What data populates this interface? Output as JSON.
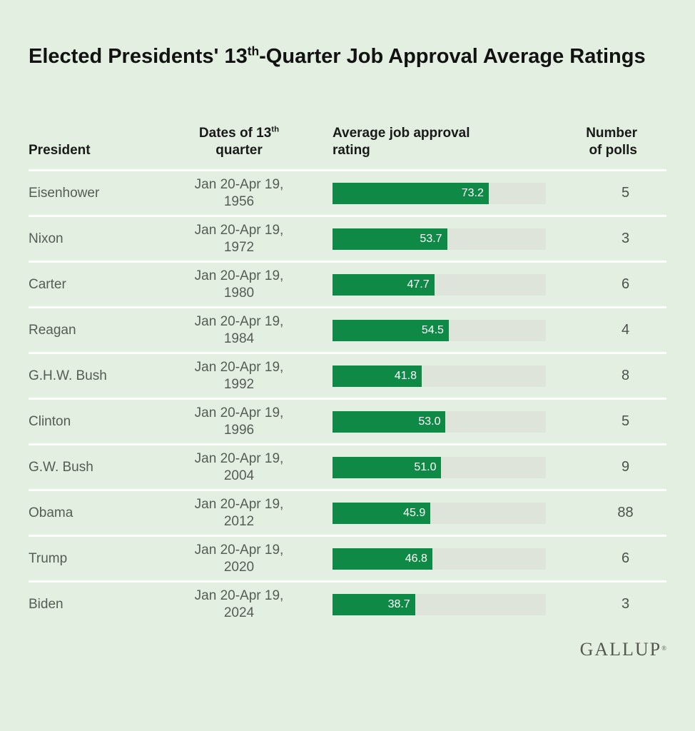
{
  "title": {
    "prefix": "Elected Presidents' 13",
    "sup": "th",
    "suffix": "-Quarter Job Approval Average Ratings"
  },
  "headers": {
    "president": "President",
    "dates_prefix": "Dates of 13",
    "dates_sup": "th",
    "dates_line2": "quarter",
    "rating_line1": "Average job approval",
    "rating_line2": "rating",
    "polls_line1": "Number",
    "polls_line2": "of polls"
  },
  "rows": [
    {
      "president": "Eisenhower",
      "dates_line1": "Jan 20-Apr 19,",
      "dates_line2": "1956",
      "rating": 73.2,
      "rating_label": "73.2",
      "polls": "5"
    },
    {
      "president": "Nixon",
      "dates_line1": "Jan 20-Apr 19,",
      "dates_line2": "1972",
      "rating": 53.7,
      "rating_label": "53.7",
      "polls": "3"
    },
    {
      "president": "Carter",
      "dates_line1": "Jan 20-Apr 19,",
      "dates_line2": "1980",
      "rating": 47.7,
      "rating_label": "47.7",
      "polls": "6"
    },
    {
      "president": "Reagan",
      "dates_line1": "Jan 20-Apr 19,",
      "dates_line2": "1984",
      "rating": 54.5,
      "rating_label": "54.5",
      "polls": "4"
    },
    {
      "president": "G.H.W. Bush",
      "dates_line1": "Jan 20-Apr 19,",
      "dates_line2": "1992",
      "rating": 41.8,
      "rating_label": "41.8",
      "polls": "8"
    },
    {
      "president": "Clinton",
      "dates_line1": "Jan 20-Apr 19,",
      "dates_line2": "1996",
      "rating": 53.0,
      "rating_label": "53.0",
      "polls": "5"
    },
    {
      "president": "G.W. Bush",
      "dates_line1": "Jan 20-Apr 19,",
      "dates_line2": "2004",
      "rating": 51.0,
      "rating_label": "51.0",
      "polls": "9"
    },
    {
      "president": "Obama",
      "dates_line1": "Jan 20-Apr 19,",
      "dates_line2": "2012",
      "rating": 45.9,
      "rating_label": "45.9",
      "polls": "88"
    },
    {
      "president": "Trump",
      "dates_line1": "Jan 20-Apr 19,",
      "dates_line2": "2020",
      "rating": 46.8,
      "rating_label": "46.8",
      "polls": "6"
    },
    {
      "president": "Biden",
      "dates_line1": "Jan 20-Apr 19,",
      "dates_line2": "2024",
      "rating": 38.7,
      "rating_label": "38.7",
      "polls": "3"
    }
  ],
  "footer": {
    "logo": "GALLUP",
    "logo_mark": "®"
  },
  "colors": {
    "background": "#e3efe1",
    "bar_fill": "#0f8a46",
    "bar_track": "#dee4da",
    "separator": "#ffffff",
    "heading_text": "#121212",
    "body_text": "#565c56",
    "poll_text": "#4c524c",
    "bar_label": "#ffffff",
    "logo_color": "#565750"
  },
  "chart_data": {
    "type": "bar",
    "orientation": "horizontal",
    "title": "Elected Presidents' 13th-Quarter Job Approval Average Ratings",
    "categories": [
      "Eisenhower",
      "Nixon",
      "Carter",
      "Reagan",
      "G.H.W. Bush",
      "Clinton",
      "G.W. Bush",
      "Obama",
      "Trump",
      "Biden"
    ],
    "quarter_dates": [
      "Jan 20-Apr 19, 1956",
      "Jan 20-Apr 19, 1972",
      "Jan 20-Apr 19, 1980",
      "Jan 20-Apr 19, 1984",
      "Jan 20-Apr 19, 1992",
      "Jan 20-Apr 19, 1996",
      "Jan 20-Apr 19, 2004",
      "Jan 20-Apr 19, 2012",
      "Jan 20-Apr 19, 2020",
      "Jan 20-Apr 19, 2024"
    ],
    "series": [
      {
        "name": "Average job approval rating",
        "values": [
          73.2,
          53.7,
          47.7,
          54.5,
          41.8,
          53.0,
          51.0,
          45.9,
          46.8,
          38.7
        ]
      },
      {
        "name": "Number of polls",
        "values": [
          5,
          3,
          6,
          4,
          8,
          5,
          9,
          88,
          6,
          3
        ]
      }
    ],
    "xlim": [
      0,
      100
    ],
    "value_labels": "inside-bar-right",
    "legend": "none",
    "grid": "off",
    "source_brand": "GALLUP"
  }
}
